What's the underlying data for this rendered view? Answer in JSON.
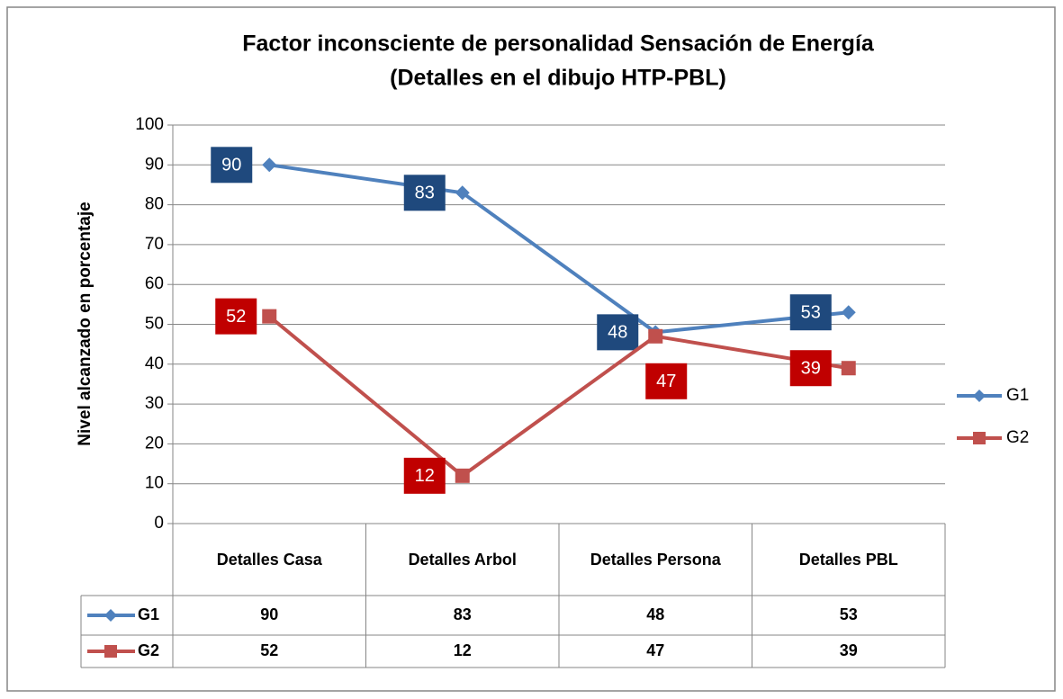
{
  "chart_data": {
    "type": "line",
    "title": [
      "Factor inconsciente de personalidad Sensación de Energía",
      "(Detalles en el dibujo HTP-PBL)"
    ],
    "y_axis_label": "Nivel alcanzado en porcentaje",
    "categories": [
      "Detalles Casa",
      "Detalles Arbol",
      "Detalles Persona",
      "Detalles PBL"
    ],
    "series": [
      {
        "name": "G1",
        "color": "#4f81bd",
        "label_color": "#1f497d",
        "marker": "diamond",
        "values": [
          90,
          83,
          48,
          53
        ]
      },
      {
        "name": "G2",
        "color": "#c0504d",
        "label_color": "#c00000",
        "marker": "square",
        "values": [
          52,
          12,
          47,
          39
        ]
      }
    ],
    "ylim": [
      0,
      100
    ],
    "yticks": [
      0,
      10,
      20,
      30,
      40,
      50,
      60,
      70,
      80,
      90,
      100
    ],
    "grid": true,
    "legend": "right",
    "data_table": true
  }
}
